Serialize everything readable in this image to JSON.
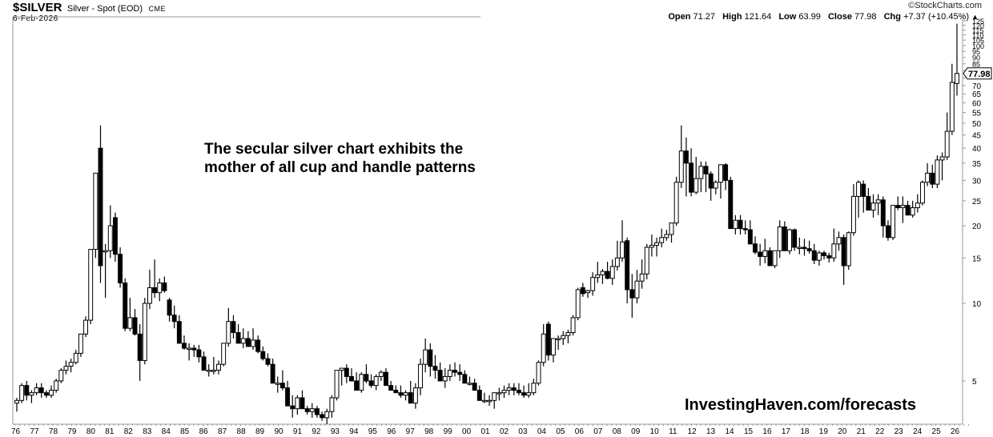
{
  "header": {
    "symbol": "$SILVER",
    "description": "Silver - Spot (EOD)",
    "exchange": "CME",
    "date": "6-Feb-2026",
    "watermark": "©StockCharts.com",
    "open_label": "Open",
    "open": "71.27",
    "high_label": "High",
    "high": "121.64",
    "low_label": "Low",
    "low": "63.99",
    "close_label": "Close",
    "close": "77.98",
    "chg_label": "Chg",
    "chg": "+7.37 (+10.45%)",
    "chg_arrow": "▲"
  },
  "annotation": {
    "line1": "The secular silver chart exhibits the",
    "line2": "mother of all cup and handle patterns"
  },
  "branding": "InvestingHaven.com/forecasts",
  "last_price_tag": "77.98",
  "chart_data": {
    "type": "candlestick",
    "title": "$SILVER Silver - Spot (EOD) CME",
    "scale": "log",
    "period": "quarterly",
    "xlabel": "",
    "ylabel": "",
    "ylim": [
      3.2,
      130
    ],
    "y_ticks": [
      5,
      10,
      15,
      20,
      25,
      30,
      35,
      40,
      45,
      50,
      55,
      60,
      65,
      70,
      75,
      80,
      85,
      90,
      95,
      100,
      105,
      110,
      115,
      120,
      125
    ],
    "y_tick_labels": [
      "5",
      "10",
      "15",
      "20",
      "25",
      "30",
      "35",
      "40",
      "45",
      "50",
      "55",
      "60",
      "65",
      "70",
      "",
      "80",
      "85",
      "90",
      "95",
      "100",
      "105",
      "110",
      "115",
      "120",
      "125"
    ],
    "x_tick_labels": [
      "76",
      "77",
      "78",
      "79",
      "80",
      "81",
      "82",
      "83",
      "84",
      "85",
      "86",
      "87",
      "88",
      "89",
      "90",
      "91",
      "92",
      "93",
      "94",
      "95",
      "96",
      "97",
      "98",
      "99",
      "00",
      "01",
      "02",
      "03",
      "04",
      "05",
      "06",
      "07",
      "08",
      "09",
      "10",
      "11",
      "12",
      "13",
      "14",
      "15",
      "16",
      "17",
      "18",
      "19",
      "20",
      "21",
      "22",
      "23",
      "24",
      "25",
      "26"
    ],
    "grid": false,
    "candles_ohlc": [
      [
        4.1,
        4.3,
        3.8,
        4.2
      ],
      [
        4.2,
        4.9,
        4.1,
        4.8
      ],
      [
        4.8,
        5.0,
        4.2,
        4.4
      ],
      [
        4.4,
        4.6,
        4.1,
        4.5
      ],
      [
        4.5,
        4.9,
        4.4,
        4.7
      ],
      [
        4.7,
        4.9,
        4.3,
        4.5
      ],
      [
        4.5,
        4.6,
        4.3,
        4.4
      ],
      [
        4.4,
        4.8,
        4.3,
        4.6
      ],
      [
        4.6,
        5.1,
        4.5,
        5.0
      ],
      [
        5.0,
        5.6,
        4.9,
        5.5
      ],
      [
        5.5,
        6.0,
        5.3,
        5.7
      ],
      [
        5.7,
        6.1,
        5.4,
        5.9
      ],
      [
        5.9,
        6.6,
        5.8,
        6.4
      ],
      [
        6.4,
        7.5,
        6.2,
        7.6
      ],
      [
        7.6,
        8.9,
        7.4,
        8.6
      ],
      [
        8.6,
        16.0,
        8.3,
        16.2
      ],
      [
        16.2,
        24.0,
        15.0,
        32.0
      ],
      [
        40.0,
        49.0,
        12.0,
        14.0
      ],
      [
        16.0,
        17.0,
        10.5,
        16.0
      ],
      [
        16.0,
        24.0,
        15.0,
        20.0
      ],
      [
        21.5,
        22.5,
        14.5,
        15.5
      ],
      [
        15.5,
        16.5,
        11.5,
        12.0
      ],
      [
        12.0,
        12.5,
        7.8,
        8.0
      ],
      [
        8.0,
        10.5,
        7.8,
        8.8
      ],
      [
        8.8,
        9.5,
        7.5,
        7.6
      ],
      [
        7.6,
        8.3,
        5.0,
        6.0
      ],
      [
        6.0,
        10.5,
        5.8,
        10.0
      ],
      [
        10.0,
        13.5,
        9.5,
        11.5
      ],
      [
        11.5,
        14.8,
        10.5,
        11.0
      ],
      [
        11.0,
        12.5,
        10.2,
        12.0
      ],
      [
        12.0,
        12.7,
        11.0,
        11.2
      ],
      [
        10.3,
        10.5,
        8.5,
        9.0
      ],
      [
        9.0,
        9.8,
        8.0,
        8.5
      ],
      [
        8.5,
        9.0,
        7.5,
        7.0
      ],
      [
        7.0,
        7.5,
        6.6,
        6.7
      ],
      [
        6.7,
        7.0,
        6.0,
        6.7
      ],
      [
        6.7,
        6.9,
        6.2,
        6.6
      ],
      [
        6.6,
        6.9,
        5.9,
        6.2
      ],
      [
        6.2,
        6.5,
        5.5,
        5.5
      ],
      [
        5.5,
        5.8,
        5.2,
        5.5
      ],
      [
        5.5,
        6.2,
        5.3,
        5.5
      ],
      [
        5.5,
        6.0,
        5.3,
        5.8
      ],
      [
        5.8,
        7.0,
        5.7,
        7.0
      ],
      [
        7.0,
        9.6,
        6.8,
        8.5
      ],
      [
        8.5,
        9.0,
        7.3,
        7.7
      ],
      [
        7.7,
        8.3,
        7.0,
        7.0
      ],
      [
        7.0,
        8.0,
        6.7,
        7.3
      ],
      [
        7.3,
        7.8,
        6.9,
        6.8
      ],
      [
        6.8,
        8.0,
        6.6,
        7.2
      ],
      [
        7.2,
        7.5,
        6.4,
        6.5
      ],
      [
        6.5,
        6.8,
        6.0,
        6.1
      ],
      [
        6.1,
        6.4,
        5.7,
        5.8
      ],
      [
        5.8,
        6.1,
        5.3,
        4.9
      ],
      [
        4.9,
        5.2,
        4.5,
        4.9
      ],
      [
        4.9,
        5.5,
        4.6,
        4.7
      ],
      [
        4.7,
        5.0,
        4.2,
        4.0
      ],
      [
        4.0,
        4.4,
        3.6,
        3.9
      ],
      [
        3.9,
        4.4,
        3.7,
        4.3
      ],
      [
        4.3,
        4.6,
        3.9,
        3.9
      ],
      [
        3.9,
        4.0,
        3.7,
        3.8
      ],
      [
        3.8,
        4.1,
        3.6,
        3.9
      ],
      [
        3.9,
        4.0,
        3.6,
        3.7
      ],
      [
        3.7,
        3.8,
        3.5,
        3.6
      ],
      [
        3.6,
        3.9,
        3.4,
        3.8
      ],
      [
        3.8,
        4.4,
        3.6,
        4.3
      ],
      [
        4.3,
        5.0,
        4.2,
        5.5
      ],
      [
        5.5,
        5.6,
        4.8,
        5.6
      ],
      [
        5.6,
        5.8,
        4.9,
        5.2
      ],
      [
        5.2,
        5.6,
        5.0,
        5.0
      ],
      [
        5.0,
        5.4,
        4.6,
        4.6
      ],
      [
        4.6,
        5.4,
        4.5,
        5.3
      ],
      [
        5.3,
        5.8,
        4.9,
        5.0
      ],
      [
        5.0,
        5.3,
        4.7,
        4.8
      ],
      [
        4.8,
        5.3,
        4.6,
        5.2
      ],
      [
        5.2,
        5.5,
        5.0,
        5.4
      ],
      [
        5.4,
        5.6,
        4.8,
        4.8
      ],
      [
        4.8,
        5.0,
        4.6,
        4.6
      ],
      [
        4.6,
        4.8,
        4.5,
        4.5
      ],
      [
        4.5,
        4.8,
        4.3,
        4.4
      ],
      [
        4.4,
        4.6,
        4.2,
        4.5
      ],
      [
        4.5,
        5.0,
        4.2,
        4.1
      ],
      [
        4.1,
        4.9,
        3.9,
        4.7
      ],
      [
        4.7,
        6.1,
        4.4,
        5.8
      ],
      [
        5.8,
        7.3,
        5.4,
        6.6
      ],
      [
        6.6,
        7.0,
        5.2,
        5.7
      ],
      [
        5.7,
        6.3,
        5.1,
        5.5
      ],
      [
        5.5,
        5.9,
        5.0,
        5.0
      ],
      [
        5.0,
        5.6,
        4.7,
        5.2
      ],
      [
        5.2,
        5.8,
        5.0,
        5.5
      ],
      [
        5.5,
        5.9,
        5.2,
        5.4
      ],
      [
        5.4,
        5.8,
        5.0,
        5.3
      ],
      [
        5.3,
        5.5,
        4.9,
        4.9
      ],
      [
        4.9,
        5.2,
        4.8,
        4.9
      ],
      [
        4.9,
        5.1,
        4.6,
        4.6
      ],
      [
        4.6,
        4.8,
        4.3,
        4.2
      ],
      [
        4.2,
        4.5,
        4.1,
        4.2
      ],
      [
        4.2,
        4.4,
        4.0,
        4.2
      ],
      [
        4.2,
        4.5,
        3.9,
        4.5
      ],
      [
        4.5,
        4.7,
        4.2,
        4.5
      ],
      [
        4.5,
        4.8,
        4.3,
        4.6
      ],
      [
        4.6,
        4.9,
        4.4,
        4.7
      ],
      [
        4.7,
        4.9,
        4.4,
        4.6
      ],
      [
        4.6,
        4.9,
        4.4,
        4.5
      ],
      [
        4.5,
        4.8,
        4.3,
        4.4
      ],
      [
        4.4,
        4.9,
        4.3,
        4.5
      ],
      [
        4.5,
        5.1,
        4.4,
        4.9
      ],
      [
        4.9,
        6.0,
        4.8,
        5.9
      ],
      [
        5.9,
        8.3,
        5.7,
        7.6
      ],
      [
        8.3,
        8.5,
        6.0,
        6.3
      ],
      [
        6.3,
        7.2,
        5.9,
        7.3
      ],
      [
        7.3,
        7.5,
        6.6,
        7.3
      ],
      [
        7.3,
        7.8,
        6.9,
        7.5
      ],
      [
        7.5,
        7.9,
        7.0,
        7.7
      ],
      [
        7.7,
        9.0,
        7.5,
        8.8
      ],
      [
        8.8,
        11.5,
        8.6,
        11.3
      ],
      [
        11.5,
        12.0,
        10.6,
        10.9
      ],
      [
        11.0,
        11.3,
        10.5,
        11.2
      ],
      [
        11.2,
        13.2,
        10.7,
        12.6
      ],
      [
        12.6,
        14.5,
        12.0,
        12.9
      ],
      [
        12.9,
        13.6,
        11.9,
        13.3
      ],
      [
        13.3,
        14.5,
        12.4,
        12.5
      ],
      [
        12.5,
        14.8,
        11.8,
        13.9
      ],
      [
        13.9,
        17.5,
        13.4,
        15.0
      ],
      [
        15.0,
        21.0,
        14.5,
        17.3
      ],
      [
        17.5,
        18.0,
        10.0,
        11.3
      ],
      [
        11.3,
        13.0,
        8.8,
        10.5
      ],
      [
        10.5,
        13.5,
        10.0,
        12.2
      ],
      [
        12.2,
        14.8,
        11.4,
        13.0
      ],
      [
        13.0,
        17.0,
        12.4,
        16.5
      ],
      [
        16.5,
        18.5,
        15.2,
        16.8
      ],
      [
        16.8,
        18.0,
        15.2,
        17.2
      ],
      [
        17.2,
        19.5,
        16.5,
        18.0
      ],
      [
        18.0,
        19.3,
        17.5,
        18.5
      ],
      [
        18.5,
        20.0,
        17.2,
        20.5
      ],
      [
        20.5,
        31.0,
        20.0,
        29.5
      ],
      [
        29.5,
        49.0,
        28.0,
        39.0
      ],
      [
        39.0,
        44.0,
        26.0,
        35.0
      ],
      [
        35.0,
        40.0,
        26.0,
        27.0
      ],
      [
        27.0,
        37.0,
        26.5,
        30.5
      ],
      [
        30.5,
        35.5,
        27.0,
        34.0
      ],
      [
        34.0,
        35.5,
        27.0,
        31.8
      ],
      [
        31.8,
        32.5,
        25.0,
        28.0
      ],
      [
        28.0,
        30.0,
        26.5,
        29.5
      ],
      [
        29.5,
        33.0,
        25.5,
        34.5
      ],
      [
        34.5,
        35.0,
        27.5,
        30.0
      ],
      [
        30.0,
        31.0,
        22.5,
        19.5
      ],
      [
        19.5,
        22.0,
        18.5,
        21.0
      ],
      [
        21.0,
        22.0,
        18.5,
        19.5
      ],
      [
        19.5,
        21.0,
        18.5,
        19.3
      ],
      [
        19.3,
        21.0,
        17.5,
        17.0
      ],
      [
        17.0,
        18.2,
        15.5,
        15.8
      ],
      [
        15.8,
        17.0,
        14.0,
        15.2
      ],
      [
        15.2,
        17.8,
        14.3,
        16.0
      ],
      [
        16.0,
        16.5,
        14.0,
        14.0
      ],
      [
        14.0,
        16.0,
        13.7,
        16.0
      ],
      [
        16.0,
        21.0,
        15.0,
        19.8
      ],
      [
        19.8,
        20.8,
        16.5,
        16.0
      ],
      [
        16.0,
        19.5,
        15.5,
        19.3
      ],
      [
        19.3,
        19.5,
        16.0,
        16.5
      ],
      [
        16.5,
        18.0,
        15.5,
        16.5
      ],
      [
        16.5,
        17.8,
        15.3,
        16.3
      ],
      [
        16.3,
        17.5,
        15.6,
        16.0
      ],
      [
        16.0,
        17.0,
        14.2,
        14.7
      ],
      [
        14.7,
        16.0,
        14.0,
        15.7
      ],
      [
        15.7,
        16.0,
        14.8,
        15.3
      ],
      [
        15.3,
        15.7,
        14.4,
        15.0
      ],
      [
        15.0,
        19.5,
        14.5,
        17.0
      ],
      [
        17.0,
        19.0,
        16.0,
        18.0
      ],
      [
        18.0,
        18.5,
        11.8,
        14.0
      ],
      [
        14.0,
        19.0,
        13.5,
        18.8
      ],
      [
        18.8,
        29.0,
        18.3,
        26.0
      ],
      [
        26.0,
        30.0,
        21.5,
        29.5
      ],
      [
        29.0,
        30.0,
        22.5,
        26.0
      ],
      [
        26.0,
        28.0,
        23.0,
        23.0
      ],
      [
        23.0,
        26.5,
        21.5,
        24.5
      ],
      [
        24.5,
        26.5,
        22.0,
        25.2
      ],
      [
        25.2,
        26.0,
        18.0,
        20.0
      ],
      [
        20.0,
        21.0,
        17.5,
        18.0
      ],
      [
        18.0,
        24.0,
        17.6,
        24.0
      ],
      [
        24.0,
        26.0,
        23.0,
        23.5
      ],
      [
        23.5,
        26.0,
        20.5,
        24.0
      ],
      [
        24.0,
        25.0,
        22.0,
        22.0
      ],
      [
        22.0,
        25.0,
        21.5,
        23.5
      ],
      [
        23.5,
        26.5,
        22.5,
        24.5
      ],
      [
        24.5,
        30.0,
        24.0,
        29.5
      ],
      [
        29.5,
        35.0,
        28.5,
        32.0
      ],
      [
        32.0,
        34.5,
        28.0,
        29.0
      ],
      [
        29.0,
        37.5,
        28.0,
        36.0
      ],
      [
        36.0,
        38.5,
        30.0,
        37.0
      ],
      [
        37.0,
        55.0,
        36.0,
        46.5
      ],
      [
        46.5,
        85.0,
        45.0,
        72.0
      ],
      [
        71.27,
        121.64,
        63.99,
        77.98
      ]
    ]
  }
}
